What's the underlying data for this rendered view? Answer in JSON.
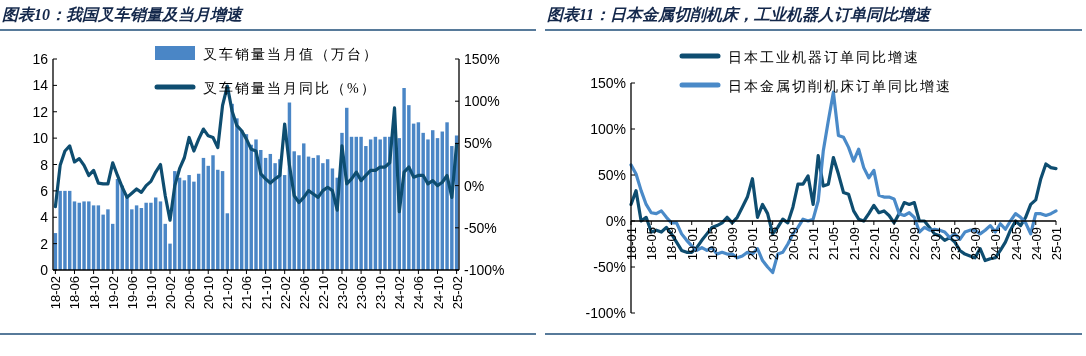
{
  "chart_data": [
    {
      "type": "bar",
      "title": "图表10：我国叉车销量及当月增速",
      "categories": [
        "18-02",
        null,
        null,
        null,
        "18-06",
        null,
        null,
        null,
        "18-10",
        null,
        null,
        null,
        "19-02",
        null,
        null,
        null,
        "19-06",
        null,
        null,
        null,
        "19-10",
        null,
        null,
        null,
        "20-02",
        null,
        null,
        null,
        "20-06",
        null,
        null,
        null,
        "20-10",
        null,
        null,
        null,
        "21-02",
        null,
        null,
        null,
        "21-06",
        null,
        null,
        null,
        "21-10",
        null,
        null,
        null,
        "22-02",
        null,
        null,
        null,
        "22-06",
        null,
        null,
        null,
        "22-10",
        null,
        null,
        null,
        "23-02",
        null,
        null,
        null,
        "23-06",
        null,
        null,
        null,
        "23-10",
        null,
        null,
        null,
        "24-02",
        null,
        null,
        null,
        "24-06",
        null,
        null,
        null,
        "24-10",
        null,
        null,
        null,
        "25-02"
      ],
      "series": [
        {
          "name": "叉车销量当月值（万台）",
          "color": "#4a86c6",
          "values": [
            2.8,
            6.0,
            6.0,
            6.0,
            5.2,
            5.1,
            5.2,
            5.2,
            4.9,
            4.9,
            4.2,
            4.6,
            3.5,
            6.9,
            6.4,
            5.7,
            4.6,
            4.9,
            4.7,
            5.1,
            5.1,
            5.5,
            5.2,
            3.5,
            2.0,
            7.5,
            7.0,
            6.8,
            7.2,
            6.7,
            7.3,
            8.5,
            7.9,
            8.7,
            7.6,
            7.5,
            4.3,
            12.6,
            11.5,
            10.6,
            10.3,
            9.5,
            9.9,
            9.1,
            8.5,
            8.8,
            8.1,
            8.4,
            7.2,
            12.7,
            9.0,
            8.7,
            9.6,
            8.6,
            8.5,
            8.7,
            8.1,
            8.4,
            7.7,
            7.0,
            10.4,
            12.3,
            10.1,
            10.1,
            10.1,
            9.4,
            9.9,
            10.1,
            9.9,
            10.1,
            10.1,
            10.5,
            10.0,
            13.8,
            12.5,
            11.1,
            11.2,
            10.4,
            9.9,
            10.6,
            10.0,
            10.5,
            11.2,
            9.4,
            10.2
          ]
        },
        {
          "name": "叉车销量当月同比（%）",
          "type": "line",
          "axis": "y2",
          "color": "#0e4d70",
          "values": [
            -25,
            24,
            41,
            47,
            28,
            32,
            24,
            12,
            18,
            3,
            2,
            2,
            27,
            12,
            -2,
            -14,
            -9,
            -4,
            -8,
            0,
            5,
            16,
            25,
            -12,
            -41,
            0,
            20,
            33,
            57,
            41,
            55,
            67,
            59,
            57,
            45,
            95,
            118,
            88,
            71,
            65,
            55,
            43,
            41,
            14,
            8,
            3,
            8,
            12,
            73,
            24,
            -12,
            -20,
            -14,
            -6,
            -10,
            -14,
            -6,
            -2,
            -6,
            -29,
            47,
            2,
            8,
            16,
            6,
            12,
            18,
            18,
            22,
            22,
            27,
            92,
            -31,
            16,
            22,
            10,
            12,
            12,
            2,
            6,
            0,
            4,
            12,
            -14,
            49
          ]
        }
      ],
      "ylim": [
        0,
        16
      ],
      "yticks": [
        0,
        2,
        4,
        6,
        8,
        10,
        12,
        14,
        16
      ],
      "y2lim": [
        -100,
        150
      ],
      "y2ticks": [
        {
          "value": -100,
          "label": "-100%"
        },
        {
          "value": -50,
          "label": "-50%"
        },
        {
          "value": 0,
          "label": "0%"
        },
        {
          "value": 50,
          "label": "50%"
        },
        {
          "value": 100,
          "label": "100%"
        },
        {
          "value": 150,
          "label": "150%"
        }
      ],
      "legend": "top"
    },
    {
      "type": "line",
      "title": "图表11：日本金属切削机床，工业机器人订单同比增速",
      "categories": [
        "18-01",
        null,
        null,
        null,
        "18-05",
        null,
        null,
        null,
        "18-09",
        null,
        null,
        null,
        "19-01",
        null,
        null,
        null,
        "19-05",
        null,
        null,
        null,
        "19-09",
        null,
        null,
        null,
        "20-01",
        null,
        null,
        null,
        "20-05",
        null,
        null,
        null,
        "20-09",
        null,
        null,
        null,
        "21-01",
        null,
        null,
        null,
        "21-05",
        null,
        null,
        null,
        "21-09",
        null,
        null,
        null,
        "22-01",
        null,
        null,
        null,
        "22-05",
        null,
        null,
        null,
        "22-09",
        null,
        null,
        null,
        "23-01",
        null,
        null,
        null,
        "23-05",
        null,
        null,
        null,
        "23-09",
        null,
        null,
        null,
        "24-01",
        null,
        null,
        null,
        "24-05",
        null,
        null,
        null,
        "24-09",
        null,
        null,
        null,
        "25-01"
      ],
      "series": [
        {
          "name": "日本工业机器订单同比增速",
          "color": "#0e4d70",
          "values": [
            18,
            33,
            0,
            4,
            -12,
            -10,
            -12,
            -7,
            -14,
            -23,
            -32,
            -34,
            -34,
            -29,
            -21,
            -14,
            -7,
            -5,
            -2,
            4,
            -2,
            4,
            15,
            26,
            46,
            4,
            18,
            8,
            -14,
            -7,
            2,
            -2,
            15,
            40,
            40,
            49,
            18,
            71,
            38,
            40,
            69,
            51,
            31,
            29,
            11,
            2,
            0,
            8,
            17,
            9,
            11,
            6,
            -2,
            8,
            20,
            18,
            20,
            0,
            0,
            -7,
            -14,
            -16,
            -21,
            -18,
            -23,
            -32,
            -36,
            -38,
            -40,
            -30,
            -43,
            -41,
            -40,
            -32,
            -23,
            -10,
            0,
            -5,
            4,
            18,
            23,
            46,
            62,
            58,
            57
          ]
        },
        {
          "name": "日本金属切削机床订单同比增速",
          "color": "#4a8ac8",
          "values": [
            61,
            51,
            33,
            18,
            9,
            8,
            11,
            4,
            -2,
            -2,
            -14,
            -21,
            -27,
            -32,
            -29,
            -32,
            -29,
            -36,
            -34,
            -36,
            -36,
            -40,
            -38,
            -34,
            -36,
            -30,
            -43,
            -50,
            -56,
            -36,
            -34,
            -25,
            -14,
            -7,
            2,
            0,
            2,
            22,
            76,
            109,
            140,
            93,
            91,
            80,
            65,
            78,
            58,
            47,
            55,
            28,
            26,
            26,
            24,
            8,
            6,
            9,
            4,
            -12,
            -7,
            -10,
            -9,
            -10,
            -12,
            -18,
            -14,
            -20,
            -12,
            -10,
            -10,
            -14,
            -10,
            -5,
            -12,
            -3,
            -9,
            0,
            8,
            4,
            -2,
            -14,
            8,
            8,
            6,
            8,
            11
          ]
        }
      ],
      "ylim": [
        -100,
        150
      ],
      "yticks": [
        {
          "value": -100,
          "label": "-100%"
        },
        {
          "value": -50,
          "label": "-50%"
        },
        {
          "value": 0,
          "label": "0%"
        },
        {
          "value": 50,
          "label": "50%"
        },
        {
          "value": 100,
          "label": "100%"
        },
        {
          "value": 150,
          "label": "150%"
        }
      ],
      "legend": "top"
    }
  ]
}
